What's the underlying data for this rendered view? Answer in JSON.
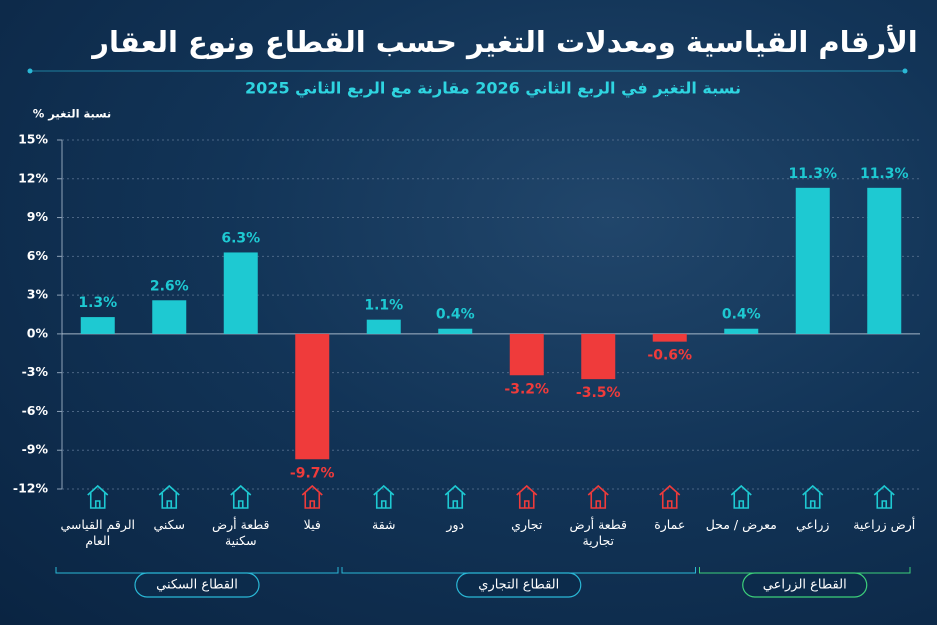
{
  "chart_data": {
    "type": "bar",
    "title": "الأرقام القياسية ومعدلات التغير حسب القطاع ونوع العقار",
    "subtitle": "نسبة التغير في الربع الثاني 2026 مقارنة مع الربع الثاني 2025",
    "y_axis_label": "نسبة التغير %",
    "categories": [
      "الرقم القياسي العام",
      "سكني",
      "قطعة أرض سكنية",
      "فيلا",
      "شقة",
      "دور",
      "تجاري",
      "قطعة أرض تجارية",
      "عمارة",
      "معرض / محل",
      "زراعي",
      "أرض زراعية"
    ],
    "values": [
      1.3,
      2.6,
      6.3,
      -9.7,
      1.1,
      0.4,
      -3.2,
      -3.5,
      -0.6,
      0.4,
      11.3,
      11.3
    ],
    "value_labels": [
      "1.3%",
      "2.6%",
      "6.3%",
      "-9.7%",
      "1.1%",
      "0.4%",
      "-3.2%",
      "-3.5%",
      "-0.6%",
      "0.4%",
      "11.3%",
      "11.3%"
    ],
    "positive_color": "#1ec9d2",
    "negative_color": "#ef3b3b",
    "ylim": [
      -12,
      15
    ],
    "yticks": [
      {
        "value": -12,
        "label": "-12%"
      },
      {
        "value": -9,
        "label": "-9%"
      },
      {
        "value": -6,
        "label": "-6%"
      },
      {
        "value": -3,
        "label": "-3%"
      },
      {
        "value": 0,
        "label": "0%"
      },
      {
        "value": 3,
        "label": "3%"
      },
      {
        "value": 6,
        "label": "6%"
      },
      {
        "value": 9,
        "label": "9%"
      },
      {
        "value": 12,
        "label": "12%"
      },
      {
        "value": 15,
        "label": "15%"
      }
    ],
    "grid": true,
    "groups": [
      {
        "name": "القطاع السكني",
        "count": 4,
        "color": "#2ab8d6"
      },
      {
        "name": "القطاع التجاري",
        "count": 5,
        "color": "#2ab8d6"
      },
      {
        "name": "القطاع الزراعي",
        "count": 3,
        "color": "#3ccf7a"
      }
    ]
  }
}
